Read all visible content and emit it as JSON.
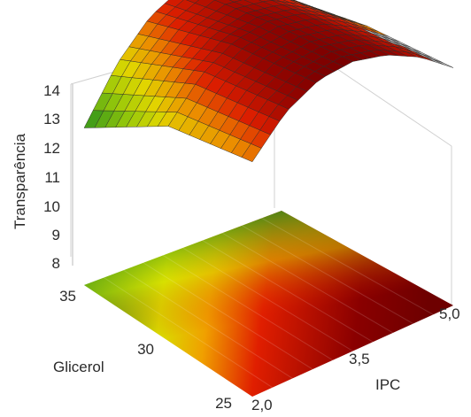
{
  "chart_data": {
    "type": "surface3d",
    "title": "",
    "zlabel": "Transparência",
    "xlabel": "IPC",
    "ylabel": "Glicerol",
    "zlim": [
      8,
      14
    ],
    "xlim": [
      2.0,
      5.0
    ],
    "ylim": [
      25,
      35
    ],
    "z_ticks": [
      "8",
      "9",
      "10",
      "11",
      "12",
      "13",
      "14"
    ],
    "x_ticks": [
      "2,0",
      "3,5",
      "5,0"
    ],
    "y_ticks": [
      "25",
      "30",
      "35"
    ],
    "response_surface": {
      "ipc": [
        2.0,
        2.5,
        3.0,
        3.5,
        4.0,
        4.5,
        5.0
      ],
      "glicerol": [
        25,
        30,
        35
      ],
      "transparencia": [
        [
          11.3,
          12.5,
          13.1,
          13.2,
          12.9,
          12.3,
          11.4
        ],
        [
          10.6,
          11.9,
          12.6,
          12.8,
          12.6,
          12.0,
          11.2
        ],
        [
          8.6,
          10.4,
          11.6,
          12.2,
          12.1,
          11.5,
          10.6
        ]
      ]
    },
    "colormap": [
      "#1e8a1e",
      "#d8e000",
      "#f0a000",
      "#e01e00",
      "#8a0000",
      "#b0b0b0"
    ],
    "projected_contour": true,
    "grid": false
  }
}
